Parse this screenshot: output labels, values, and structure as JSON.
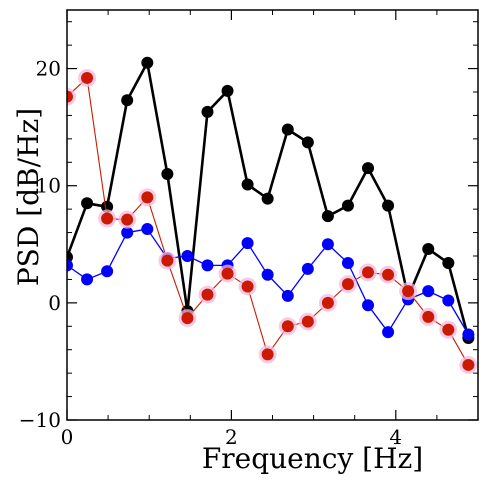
{
  "chart_data": {
    "type": "line",
    "xlabel": "Frequency [Hz]",
    "ylabel": "PSD [dB/Hz]",
    "xlim": [
      0,
      5
    ],
    "ylim": [
      -10,
      25
    ],
    "xticks": [
      0,
      2,
      4
    ],
    "xtick_labels": [
      "0",
      "2",
      "4"
    ],
    "yticks": [
      -10,
      0,
      10,
      20
    ],
    "ytick_labels": [
      "−10",
      "0",
      "10",
      "20"
    ],
    "grid": false,
    "x": [
      0,
      0.244,
      0.488,
      0.732,
      0.977,
      1.221,
      1.465,
      1.709,
      1.953,
      2.197,
      2.441,
      2.686,
      2.93,
      3.174,
      3.418,
      3.662,
      3.906,
      4.15,
      4.395,
      4.639,
      4.883
    ],
    "series": [
      {
        "color": "#000000",
        "values": [
          3.9,
          8.5,
          8.2,
          17.3,
          20.5,
          11.0,
          -0.7,
          16.3,
          18.1,
          10.1,
          8.9,
          14.8,
          13.7,
          7.4,
          8.3,
          11.5,
          8.3,
          0.5,
          4.6,
          3.4,
          -3.0
        ]
      },
      {
        "color": "#0000ff",
        "values": [
          3.2,
          2.0,
          2.7,
          6.0,
          6.3,
          3.8,
          4.0,
          3.2,
          3.2,
          5.1,
          2.4,
          0.6,
          2.9,
          5.0,
          3.4,
          -0.2,
          -2.5,
          0.3,
          1.0,
          0.2,
          -2.7
        ]
      },
      {
        "color": "#cc1a00",
        "values": [
          17.6,
          19.2,
          7.2,
          7.1,
          9.0,
          3.6,
          -1.3,
          0.7,
          2.5,
          1.4,
          -4.4,
          -2.0,
          -1.6,
          0.0,
          1.6,
          2.6,
          2.4,
          1.0,
          -1.2,
          -2.3,
          -5.3
        ]
      }
    ]
  }
}
